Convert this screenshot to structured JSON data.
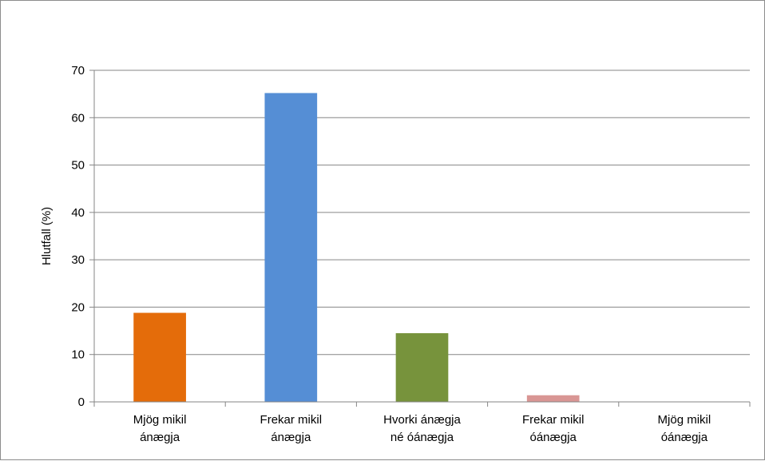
{
  "chart_data": {
    "type": "bar",
    "title": "",
    "xlabel": "",
    "ylabel": "Hlutfall (%)",
    "ylim": [
      0,
      70
    ],
    "yticks": [
      0,
      10,
      20,
      30,
      40,
      50,
      60,
      70
    ],
    "grid": true,
    "legend": "none",
    "categories": [
      [
        "Mjög mikil",
        "ánægja"
      ],
      [
        "Frekar mikil",
        "ánægja"
      ],
      [
        "Hvorki ánægja",
        "né óánægja"
      ],
      [
        "Frekar mikil",
        "óánægja"
      ],
      [
        "Mjög mikil",
        "óánægja"
      ]
    ],
    "values": [
      18.8,
      65.2,
      14.5,
      1.4,
      0
    ],
    "colors": [
      "#e46c0a",
      "#558ed5",
      "#77933c",
      "#d99694",
      "#8064a2"
    ]
  }
}
